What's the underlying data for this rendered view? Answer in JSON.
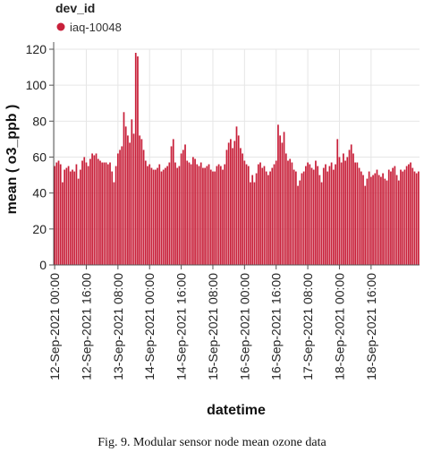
{
  "legend": {
    "title": "dev_id",
    "series_label": "iaq-10048"
  },
  "caption": "Fig. 9.   Modular sensor node mean ozone data",
  "colors": {
    "bar": "#c8203a",
    "bar_stroke": "#a01428",
    "axis": "#555555",
    "grid": "#e6e6e6"
  },
  "chart_data": {
    "type": "bar",
    "title": "",
    "xlabel": "datetime",
    "ylabel": "mean ( o3_ppb )",
    "ylim": [
      0,
      120
    ],
    "yticks": [
      0,
      20,
      40,
      60,
      80,
      100,
      120
    ],
    "grid": "vertical and horizontal",
    "legend_position": "top-left",
    "x_start": "12-Sep-2021 00:00",
    "x_interval": "1 hour",
    "xtick_labels": [
      "12-Sep-2021 00:00",
      "12-Sep-2021 16:00",
      "13-Sep-2021 08:00",
      "14-Sep-2021 00:00",
      "14-Sep-2021 16:00",
      "15-Sep-2021 08:00",
      "16-Sep-2021 00:00",
      "16-Sep-2021 16:00",
      "17-Sep-2021 08:00",
      "18-Sep-2021 00:00",
      "18-Sep-2021 16:00"
    ],
    "series": [
      {
        "name": "iaq-10048",
        "values": [
          55,
          57,
          58,
          56,
          46,
          53,
          54,
          55,
          52,
          53,
          52,
          56,
          48,
          53,
          58,
          60,
          57,
          55,
          59,
          62,
          61,
          62,
          59,
          58,
          57,
          57,
          57,
          56,
          57,
          52,
          46,
          55,
          62,
          64,
          66,
          85,
          77,
          72,
          68,
          81,
          73,
          118,
          116,
          72,
          70,
          64,
          58,
          55,
          56,
          54,
          53,
          53,
          54,
          56,
          52,
          53,
          54,
          55,
          57,
          66,
          70,
          57,
          54,
          55,
          62,
          64,
          67,
          58,
          57,
          56,
          60,
          59,
          56,
          55,
          57,
          54,
          54,
          55,
          56,
          53,
          52,
          52,
          55,
          56,
          55,
          53,
          56,
          64,
          68,
          70,
          65,
          69,
          77,
          72,
          65,
          62,
          58,
          56,
          55,
          46,
          50,
          46,
          51,
          56,
          57,
          54,
          55,
          52,
          50,
          52,
          54,
          56,
          58,
          78,
          72,
          68,
          74,
          62,
          58,
          59,
          57,
          53,
          52,
          44,
          47,
          51,
          52,
          55,
          57,
          56,
          54,
          53,
          58,
          55,
          50,
          46,
          54,
          56,
          52,
          55,
          57,
          53,
          56,
          70,
          60,
          57,
          62,
          58,
          60,
          64,
          67,
          62,
          57,
          57,
          54,
          52,
          50,
          44,
          48,
          52,
          49,
          50,
          51,
          53,
          50,
          49,
          51,
          48,
          47,
          53,
          52,
          54,
          55,
          50,
          47,
          53,
          52,
          53,
          55,
          56,
          57,
          54,
          52,
          51,
          52
        ]
      }
    ]
  }
}
